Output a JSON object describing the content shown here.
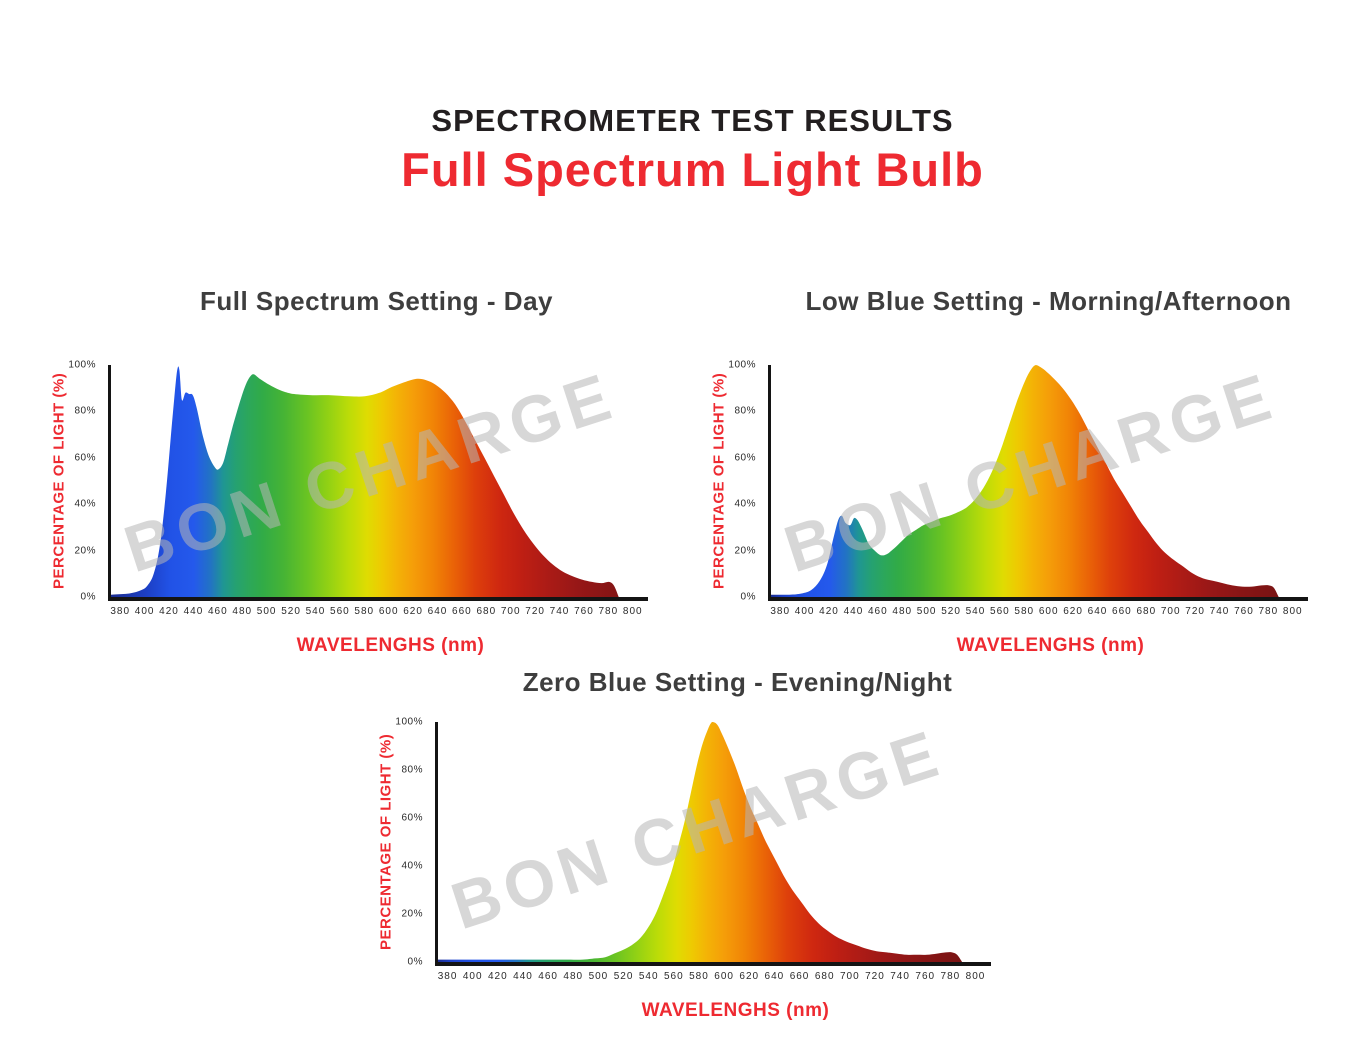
{
  "header": {
    "title": "SPECTROMETER TEST RESULTS",
    "subtitle": "Full Spectrum Light Bulb"
  },
  "watermark": "BON CHARGE",
  "colors": {
    "accent_red": "#ee2a31",
    "title_black": "#231f20",
    "chart_title_gray": "#3e3e3e",
    "axis_line": "#141414",
    "tick_text": "#2b2b2b",
    "watermark_gray": "#b7b7b7"
  },
  "axis": {
    "y_label": "PERCENTAGE OF LIGHT (%)",
    "x_label": "WAVELENGHS (nm)",
    "y_ticks": [
      "100%",
      "80%",
      "60%",
      "40%",
      "20%",
      "0%"
    ],
    "x_ticks": [
      380,
      400,
      420,
      440,
      460,
      480,
      500,
      520,
      540,
      560,
      580,
      600,
      620,
      640,
      660,
      680,
      700,
      720,
      740,
      760,
      780,
      800
    ]
  },
  "spectrum_gradient": {
    "comment": "horizontal visible-spectrum gradient, stops keyed by wavelength nm over plot domain 370-810",
    "stops": [
      {
        "nm": 370,
        "color": "#1b2d91"
      },
      {
        "nm": 400,
        "color": "#1d40c6"
      },
      {
        "nm": 418,
        "color": "#2152e6"
      },
      {
        "nm": 438,
        "color": "#2459ec"
      },
      {
        "nm": 452,
        "color": "#2274c2"
      },
      {
        "nm": 462,
        "color": "#1f9693"
      },
      {
        "nm": 472,
        "color": "#25a172"
      },
      {
        "nm": 483,
        "color": "#2ca75a"
      },
      {
        "nm": 494,
        "color": "#31ab47"
      },
      {
        "nm": 512,
        "color": "#47b434"
      },
      {
        "nm": 530,
        "color": "#68c323"
      },
      {
        "nm": 548,
        "color": "#92d114"
      },
      {
        "nm": 565,
        "color": "#bcdc08"
      },
      {
        "nm": 580,
        "color": "#dfdc02"
      },
      {
        "nm": 592,
        "color": "#eeca02"
      },
      {
        "nm": 604,
        "color": "#f4b306"
      },
      {
        "nm": 618,
        "color": "#f59d09"
      },
      {
        "nm": 634,
        "color": "#f18406"
      },
      {
        "nm": 650,
        "color": "#ea6407"
      },
      {
        "nm": 668,
        "color": "#de400b"
      },
      {
        "nm": 688,
        "color": "#cf2810"
      },
      {
        "nm": 706,
        "color": "#bf1f13"
      },
      {
        "nm": 728,
        "color": "#ab1b16"
      },
      {
        "nm": 752,
        "color": "#971717"
      },
      {
        "nm": 778,
        "color": "#871515"
      },
      {
        "nm": 810,
        "color": "#771313"
      }
    ]
  },
  "chart_data": [
    {
      "type": "area",
      "title": "Full Spectrum Setting - Day",
      "xlabel": "WAVELENGHS (nm)",
      "ylabel": "PERCENTAGE OF LIGHT (%)",
      "xlim": [
        380,
        800
      ],
      "ylim": [
        0,
        100
      ],
      "grid": false,
      "legend": false,
      "gradient_shift_nm": 0,
      "points": [
        [
          370,
          1
        ],
        [
          385,
          1.5
        ],
        [
          395,
          3
        ],
        [
          400,
          5
        ],
        [
          405,
          10
        ],
        [
          410,
          22
        ],
        [
          415,
          45
        ],
        [
          420,
          75
        ],
        [
          424,
          97
        ],
        [
          426,
          98
        ],
        [
          428,
          85
        ],
        [
          431,
          88
        ],
        [
          434,
          87.5
        ],
        [
          437,
          87
        ],
        [
          440,
          82
        ],
        [
          445,
          70
        ],
        [
          450,
          61
        ],
        [
          455,
          56
        ],
        [
          458,
          55
        ],
        [
          462,
          58
        ],
        [
          466,
          66
        ],
        [
          470,
          74
        ],
        [
          475,
          83
        ],
        [
          480,
          91
        ],
        [
          484,
          95
        ],
        [
          487,
          96
        ],
        [
          492,
          94
        ],
        [
          498,
          92
        ],
        [
          505,
          90
        ],
        [
          512,
          88.5
        ],
        [
          520,
          87.5
        ],
        [
          535,
          87
        ],
        [
          550,
          87
        ],
        [
          565,
          86.5
        ],
        [
          578,
          86.5
        ],
        [
          590,
          88
        ],
        [
          600,
          90.5
        ],
        [
          610,
          92.5
        ],
        [
          620,
          94
        ],
        [
          628,
          93.5
        ],
        [
          636,
          91.5
        ],
        [
          644,
          88
        ],
        [
          652,
          83
        ],
        [
          660,
          76
        ],
        [
          668,
          68
        ],
        [
          676,
          60
        ],
        [
          684,
          52
        ],
        [
          692,
          44
        ],
        [
          700,
          36
        ],
        [
          708,
          29
        ],
        [
          716,
          23
        ],
        [
          724,
          18
        ],
        [
          732,
          14
        ],
        [
          740,
          11
        ],
        [
          748,
          9
        ],
        [
          756,
          7.5
        ],
        [
          764,
          6.5
        ],
        [
          772,
          6
        ],
        [
          778,
          6.5
        ],
        [
          782,
          5
        ],
        [
          786,
          0
        ]
      ]
    },
    {
      "type": "area",
      "title": "Low Blue Setting - Morning/Afternoon",
      "xlabel": "WAVELENGHS (nm)",
      "ylabel": "PERCENTAGE OF LIGHT (%)",
      "xlim": [
        380,
        800
      ],
      "ylim": [
        0,
        100
      ],
      "grid": false,
      "legend": false,
      "gradient_shift_nm": -20,
      "points": [
        [
          370,
          1
        ],
        [
          385,
          1
        ],
        [
          395,
          1.5
        ],
        [
          403,
          3
        ],
        [
          410,
          7
        ],
        [
          416,
          14
        ],
        [
          421,
          25
        ],
        [
          425,
          33
        ],
        [
          428,
          35
        ],
        [
          431,
          32
        ],
        [
          435,
          31
        ],
        [
          438,
          34
        ],
        [
          441,
          33
        ],
        [
          445,
          29
        ],
        [
          450,
          23
        ],
        [
          455,
          20
        ],
        [
          460,
          18
        ],
        [
          465,
          18.5
        ],
        [
          471,
          21
        ],
        [
          477,
          24
        ],
        [
          483,
          27
        ],
        [
          489,
          29
        ],
        [
          495,
          31
        ],
        [
          502,
          32.5
        ],
        [
          509,
          34
        ],
        [
          516,
          35
        ],
        [
          523,
          36.5
        ],
        [
          530,
          38.5
        ],
        [
          537,
          42
        ],
        [
          544,
          47
        ],
        [
          551,
          54
        ],
        [
          558,
          63
        ],
        [
          565,
          74
        ],
        [
          572,
          85
        ],
        [
          578,
          93
        ],
        [
          583,
          98
        ],
        [
          587,
          100
        ],
        [
          591,
          99
        ],
        [
          596,
          97
        ],
        [
          602,
          94
        ],
        [
          609,
          90
        ],
        [
          616,
          85
        ],
        [
          623,
          79
        ],
        [
          630,
          72
        ],
        [
          637,
          65
        ],
        [
          644,
          58
        ],
        [
          651,
          51
        ],
        [
          658,
          45
        ],
        [
          665,
          39
        ],
        [
          672,
          33
        ],
        [
          679,
          28
        ],
        [
          686,
          23
        ],
        [
          693,
          19
        ],
        [
          700,
          16
        ],
        [
          708,
          13
        ],
        [
          716,
          10
        ],
        [
          724,
          8
        ],
        [
          732,
          7
        ],
        [
          740,
          6
        ],
        [
          748,
          5
        ],
        [
          756,
          4.5
        ],
        [
          764,
          4.5
        ],
        [
          772,
          5
        ],
        [
          778,
          5
        ],
        [
          782,
          4
        ],
        [
          786,
          0
        ]
      ]
    },
    {
      "type": "area",
      "title": "Zero Blue Setting - Evening/Night",
      "xlabel": "WAVELENGHS (nm)",
      "ylabel": "PERCENTAGE OF LIGHT (%)",
      "xlim": [
        380,
        800
      ],
      "ylim": [
        0,
        100
      ],
      "grid": false,
      "legend": false,
      "gradient_shift_nm": -20,
      "points": [
        [
          370,
          1
        ],
        [
          390,
          1
        ],
        [
          410,
          1
        ],
        [
          430,
          1
        ],
        [
          450,
          1
        ],
        [
          470,
          1
        ],
        [
          485,
          1
        ],
        [
          495,
          1.5
        ],
        [
          503,
          2
        ],
        [
          510,
          3.5
        ],
        [
          517,
          5
        ],
        [
          524,
          7
        ],
        [
          531,
          10
        ],
        [
          538,
          15
        ],
        [
          544,
          21
        ],
        [
          550,
          29
        ],
        [
          556,
          38
        ],
        [
          561,
          48
        ],
        [
          566,
          58
        ],
        [
          571,
          70
        ],
        [
          576,
          82
        ],
        [
          580,
          90
        ],
        [
          584,
          96
        ],
        [
          588,
          100
        ],
        [
          592,
          99
        ],
        [
          596,
          95
        ],
        [
          601,
          89
        ],
        [
          607,
          81
        ],
        [
          613,
          72
        ],
        [
          619,
          64
        ],
        [
          625,
          57
        ],
        [
          631,
          50
        ],
        [
          638,
          43
        ],
        [
          645,
          36
        ],
        [
          652,
          30
        ],
        [
          659,
          25
        ],
        [
          666,
          20
        ],
        [
          673,
          16
        ],
        [
          680,
          13
        ],
        [
          687,
          10.5
        ],
        [
          695,
          8.5
        ],
        [
          703,
          7
        ],
        [
          711,
          5.5
        ],
        [
          719,
          4.5
        ],
        [
          727,
          4
        ],
        [
          735,
          3.5
        ],
        [
          743,
          3
        ],
        [
          751,
          3
        ],
        [
          759,
          3
        ],
        [
          767,
          3.5
        ],
        [
          774,
          4
        ],
        [
          779,
          4
        ],
        [
          783,
          3
        ],
        [
          787,
          0
        ]
      ]
    }
  ]
}
